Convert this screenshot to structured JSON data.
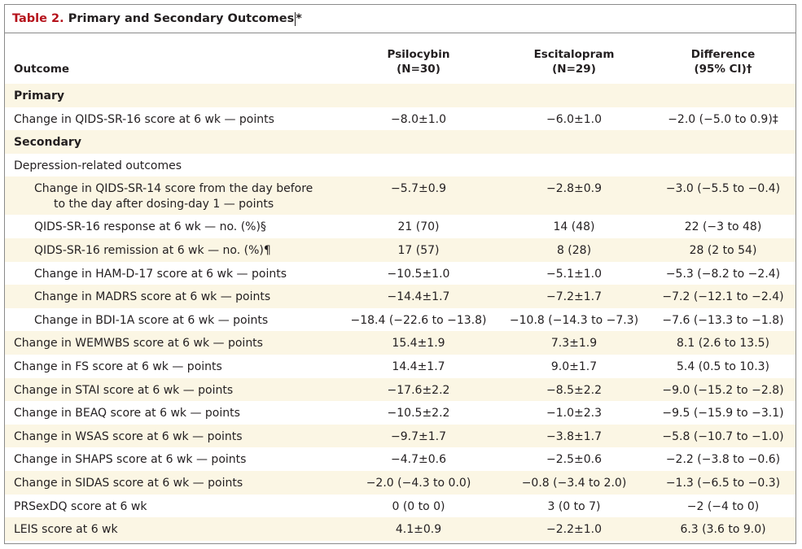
{
  "table": {
    "label": "Table 2.",
    "title": "Primary and Secondary Outcomes",
    "title_mark": "*",
    "header": {
      "outcome": "Outcome",
      "col1": [
        "Psilocybin",
        "(N=30)"
      ],
      "col2": [
        "Escitalopram",
        "(N=29)"
      ],
      "col3": [
        "Difference",
        "(95% CI)†"
      ]
    },
    "rows": [
      {
        "type": "section",
        "label": "Primary",
        "shade": true
      },
      {
        "type": "data",
        "label": "Change in QIDS-SR-16 score at 6 wk — points",
        "v1": "−8.0±1.0",
        "v2": "−6.0±1.0",
        "v3": "−2.0 (−5.0 to 0.9)‡",
        "shade": false
      },
      {
        "type": "section",
        "label": "Secondary",
        "shade": true
      },
      {
        "type": "data",
        "label": "Depression-related outcomes",
        "v1": "",
        "v2": "",
        "v3": "",
        "shade": false
      },
      {
        "type": "sub",
        "label": "Change in QIDS-SR-14 score from the day before",
        "label2": "to the day after dosing-day 1 — points",
        "v1": "−5.7±0.9",
        "v2": "−2.8±0.9",
        "v3": "−3.0 (−5.5 to −0.4)",
        "shade": true
      },
      {
        "type": "sub",
        "label": "QIDS-SR-16 response at 6 wk — no. (%)§",
        "v1": "21 (70)",
        "v2": "14 (48)",
        "v3": "22 (−3 to 48)",
        "shade": false
      },
      {
        "type": "sub",
        "label": "QIDS-SR-16 remission at 6 wk — no. (%)¶",
        "v1": "17 (57)",
        "v2": "8 (28)",
        "v3": "28 (2 to 54)",
        "shade": true
      },
      {
        "type": "sub",
        "label": "Change in HAM-D-17 score at 6 wk — points",
        "v1": "−10.5±1.0",
        "v2": "−5.1±1.0",
        "v3": "−5.3 (−8.2 to −2.4)",
        "shade": false
      },
      {
        "type": "sub",
        "label": "Change in MADRS score at 6 wk — points",
        "v1": "−14.4±1.7",
        "v2": "−7.2±1.7",
        "v3": "−7.2 (−12.1 to −2.4)",
        "shade": true
      },
      {
        "type": "sub",
        "label": "Change in BDI-1A score at 6 wk — points",
        "v1": "−18.4 (−22.6 to −13.8)",
        "v2": "−10.8 (−14.3 to −7.3)",
        "v3": "−7.6 (−13.3 to −1.8)",
        "shade": false
      },
      {
        "type": "data",
        "label": "Change in WEMWBS score at 6 wk — points",
        "v1": "15.4±1.9",
        "v2": "7.3±1.9",
        "v3": "8.1 (2.6 to 13.5)",
        "shade": true
      },
      {
        "type": "data",
        "label": "Change in FS score at 6 wk — points",
        "v1": "14.4±1.7",
        "v2": "9.0±1.7",
        "v3": "5.4 (0.5 to 10.3)",
        "shade": false
      },
      {
        "type": "data",
        "label": "Change in STAI score at 6 wk — points",
        "v1": "−17.6±2.2",
        "v2": "−8.5±2.2",
        "v3": "−9.0 (−15.2 to −2.8)",
        "shade": true
      },
      {
        "type": "data",
        "label": "Change in BEAQ score at 6 wk — points",
        "v1": "−10.5±2.2",
        "v2": "−1.0±2.3",
        "v3": "−9.5 (−15.9 to −3.1)",
        "shade": false
      },
      {
        "type": "data",
        "label": "Change in WSAS score at 6 wk — points",
        "v1": "−9.7±1.7",
        "v2": "−3.8±1.7",
        "v3": "−5.8 (−10.7 to −1.0)",
        "shade": true
      },
      {
        "type": "data",
        "label": "Change in SHAPS score at 6 wk — points",
        "v1": "−4.7±0.6",
        "v2": "−2.5±0.6",
        "v3": "−2.2 (−3.8 to −0.6)",
        "shade": false
      },
      {
        "type": "data",
        "label": "Change in SIDAS score at 6 wk — points",
        "v1": "−2.0 (−4.3 to 0.0)",
        "v2": "−0.8 (−3.4 to 2.0)",
        "v3": "−1.3 (−6.5 to −0.3)",
        "shade": true
      },
      {
        "type": "data",
        "label": "PRSexDQ score at 6 wk",
        "v1": "0 (0 to 0)",
        "v2": "3 (0 to 7)",
        "v3": "−2 (−4 to 0)",
        "shade": false
      },
      {
        "type": "data",
        "label": "LEIS score at 6 wk",
        "v1": "4.1±0.9",
        "v2": "−2.2±1.0",
        "v3": "6.3 (3.6 to 9.0)",
        "shade": true
      }
    ]
  }
}
